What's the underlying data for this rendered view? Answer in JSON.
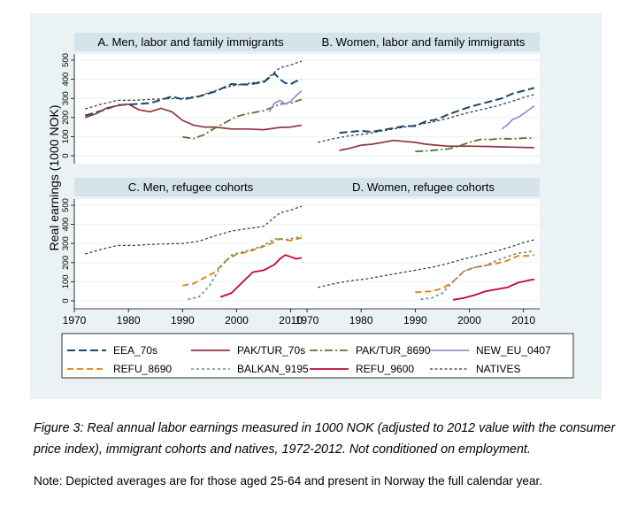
{
  "figure": {
    "y_axis_title": "Real earnings (1000 NOK)",
    "caption": "Figure 3: Real annual labor earnings measured in 1000 NOK (adjusted to 2012 value with the consumer price index), immigrant cohorts and natives, 1972-2012. Not conditioned on employment.",
    "note": "Note: Depicted averages are for those aged 25-64 and present in Norway the full calendar year."
  },
  "colors": {
    "EEA_70s": "#1a476f",
    "PAK/TUR_70s": "#90353b",
    "PAK/TUR_8690": "#55752f",
    "NEW_EU_0407": "#9c8fd6",
    "REFU_8690": "#e37e00",
    "BALKAN_9195": "#6e8e84",
    "REFU_9600": "#c10534",
    "NATIVES": "#343434",
    "panel_title_bg": "#d5e4eb",
    "figure_bg": "#eaf2f3"
  },
  "chart_data": [
    {
      "type": "line",
      "title": "A. Men, labor and family immigrants",
      "xlim": [
        1970,
        2013
      ],
      "ylim": [
        0,
        500
      ],
      "xticks": [
        "1970",
        "1980",
        "1990",
        "2000",
        "2010"
      ],
      "yticks": [
        "0",
        "100",
        "200",
        "300",
        "400",
        "500"
      ],
      "series": [
        {
          "name": "NATIVES",
          "x": [
            1972,
            1975,
            1978,
            1981,
            1984,
            1987,
            1990,
            1993,
            1996,
            1999,
            2002,
            2005,
            2008,
            2010,
            2012
          ],
          "y": [
            245,
            270,
            290,
            290,
            295,
            298,
            300,
            312,
            340,
            365,
            378,
            390,
            460,
            475,
            495
          ]
        },
        {
          "name": "EEA_70s",
          "x": [
            1972,
            1975,
            1978,
            1981,
            1984,
            1986,
            1988,
            1990,
            1993,
            1996,
            1999,
            2002,
            2005,
            2007,
            2008,
            2009,
            2010,
            2011,
            2012
          ],
          "y": [
            210,
            235,
            265,
            270,
            275,
            292,
            310,
            295,
            310,
            335,
            375,
            372,
            385,
            430,
            400,
            380,
            375,
            390,
            400
          ]
        },
        {
          "name": "PAK/TUR_70s",
          "x": [
            1972,
            1974,
            1976,
            1978,
            1980,
            1982,
            1984,
            1986,
            1988,
            1990,
            1992,
            1994,
            1996,
            1999,
            2002,
            2005,
            2008,
            2010,
            2012
          ],
          "y": [
            200,
            220,
            250,
            262,
            270,
            240,
            230,
            248,
            230,
            185,
            160,
            150,
            150,
            140,
            140,
            136,
            148,
            150,
            160
          ]
        },
        {
          "name": "PAK/TUR_8690",
          "x": [
            1990,
            1992,
            1994,
            1996,
            1998,
            2000,
            2002,
            2005,
            2008,
            2010,
            2012
          ],
          "y": [
            98,
            90,
            110,
            145,
            175,
            205,
            220,
            235,
            270,
            275,
            295
          ]
        },
        {
          "name": "NEW_EU_0407",
          "x": [
            2006,
            2007,
            2008,
            2009,
            2010,
            2011,
            2012
          ],
          "y": [
            230,
            275,
            290,
            270,
            285,
            315,
            340
          ]
        }
      ]
    },
    {
      "type": "line",
      "title": "B. Women, labor and family immigrants",
      "xlim": [
        1970,
        2013
      ],
      "ylim": [
        0,
        500
      ],
      "xticks": [
        "1970",
        "1980",
        "1990",
        "2000",
        "2010"
      ],
      "yticks": [
        "0",
        "100",
        "200",
        "300",
        "400",
        "500"
      ],
      "series": [
        {
          "name": "NATIVES",
          "x": [
            1972,
            1975,
            1978,
            1981,
            1984,
            1987,
            1990,
            1993,
            1996,
            1999,
            2002,
            2005,
            2008,
            2010,
            2012
          ],
          "y": [
            70,
            90,
            105,
            115,
            130,
            145,
            160,
            175,
            195,
            220,
            240,
            260,
            285,
            305,
            320
          ]
        },
        {
          "name": "EEA_70s",
          "x": [
            1976,
            1978,
            1980,
            1982,
            1984,
            1986,
            1988,
            1990,
            1992,
            1994,
            1996,
            1998,
            2000,
            2002,
            2004,
            2006,
            2008,
            2010,
            2012
          ],
          "y": [
            120,
            125,
            130,
            125,
            135,
            145,
            155,
            155,
            180,
            190,
            215,
            235,
            255,
            270,
            285,
            300,
            325,
            340,
            355
          ]
        },
        {
          "name": "PAK/TUR_70s",
          "x": [
            1976,
            1978,
            1980,
            1982,
            1984,
            1986,
            1988,
            1990,
            1992,
            1994,
            1996,
            2000,
            2004,
            2008,
            2012
          ],
          "y": [
            28,
            40,
            55,
            60,
            70,
            80,
            75,
            70,
            60,
            55,
            50,
            50,
            48,
            45,
            42
          ]
        },
        {
          "name": "PAK/TUR_8690",
          "x": [
            1990,
            1992,
            1994,
            1996,
            1998,
            2000,
            2002,
            2004,
            2006,
            2008,
            2010,
            2012
          ],
          "y": [
            22,
            25,
            30,
            35,
            50,
            70,
            85,
            85,
            90,
            88,
            92,
            92
          ]
        },
        {
          "name": "NEW_EU_0407",
          "x": [
            2006,
            2007,
            2008,
            2009,
            2010,
            2011,
            2012
          ],
          "y": [
            140,
            160,
            190,
            200,
            220,
            240,
            260
          ]
        }
      ]
    },
    {
      "type": "line",
      "title": "C. Men, refugee cohorts",
      "xlim": [
        1970,
        2013
      ],
      "ylim": [
        0,
        500
      ],
      "xticks": [
        "1970",
        "1980",
        "1990",
        "2000",
        "2010"
      ],
      "yticks": [
        "0",
        "100",
        "200",
        "300",
        "400",
        "500"
      ],
      "series": [
        {
          "name": "NATIVES",
          "x": [
            1972,
            1975,
            1978,
            1981,
            1984,
            1987,
            1990,
            1993,
            1996,
            1999,
            2002,
            2005,
            2008,
            2010,
            2012
          ],
          "y": [
            245,
            270,
            290,
            290,
            295,
            298,
            300,
            312,
            340,
            365,
            378,
            390,
            460,
            475,
            495
          ]
        },
        {
          "name": "REFU_8690",
          "x": [
            1990,
            1992,
            1994,
            1996,
            1998,
            2000,
            2002,
            2004,
            2006,
            2008,
            2010,
            2012
          ],
          "y": [
            80,
            90,
            120,
            150,
            210,
            245,
            255,
            275,
            295,
            325,
            315,
            330
          ]
        },
        {
          "name": "BALKAN_9195",
          "x": [
            1991,
            1993,
            1995,
            1997,
            1999,
            2001,
            2003,
            2005,
            2007,
            2009,
            2011,
            2012
          ],
          "y": [
            8,
            20,
            80,
            175,
            240,
            255,
            270,
            290,
            325,
            320,
            330,
            340
          ]
        },
        {
          "name": "REFU_9600",
          "x": [
            1997,
            1999,
            2001,
            2003,
            2005,
            2007,
            2008,
            2009,
            2010,
            2011,
            2012
          ],
          "y": [
            20,
            40,
            95,
            150,
            160,
            190,
            220,
            240,
            230,
            220,
            225
          ]
        }
      ]
    },
    {
      "type": "line",
      "title": "D. Women, refugee cohorts",
      "xlim": [
        1970,
        2013
      ],
      "ylim": [
        0,
        500
      ],
      "xticks": [
        "1970",
        "1980",
        "1990",
        "2000",
        "2010"
      ],
      "yticks": [
        "0",
        "100",
        "200",
        "300",
        "400",
        "500"
      ],
      "series": [
        {
          "name": "NATIVES",
          "x": [
            1972,
            1975,
            1978,
            1981,
            1984,
            1987,
            1990,
            1993,
            1996,
            1999,
            2002,
            2005,
            2008,
            2010,
            2012
          ],
          "y": [
            70,
            90,
            105,
            115,
            130,
            145,
            160,
            175,
            195,
            220,
            240,
            260,
            285,
            305,
            320
          ]
        },
        {
          "name": "REFU_8690",
          "x": [
            1990,
            1993,
            1995,
            1997,
            1999,
            2001,
            2003,
            2005,
            2007,
            2009,
            2011,
            2012
          ],
          "y": [
            45,
            50,
            65,
            100,
            155,
            175,
            185,
            195,
            210,
            235,
            235,
            240
          ]
        },
        {
          "name": "BALKAN_9195",
          "x": [
            1991,
            1993,
            1995,
            1997,
            1999,
            2001,
            2003,
            2005,
            2007,
            2009,
            2011,
            2012
          ],
          "y": [
            8,
            15,
            40,
            100,
            155,
            175,
            185,
            210,
            230,
            250,
            255,
            265
          ]
        },
        {
          "name": "REFU_9600",
          "x": [
            1997,
            1999,
            2001,
            2003,
            2005,
            2007,
            2009,
            2011,
            2012
          ],
          "y": [
            5,
            15,
            30,
            50,
            60,
            70,
            95,
            108,
            112
          ]
        }
      ]
    }
  ],
  "legend": {
    "items": [
      {
        "name": "EEA_70s",
        "dash": "long"
      },
      {
        "name": "PAK/TUR_70s",
        "dash": "solid"
      },
      {
        "name": "PAK/TUR_8690",
        "dash": "longdot"
      },
      {
        "name": "NEW_EU_0407",
        "dash": "solid"
      },
      {
        "name": "REFU_8690",
        "dash": "medium"
      },
      {
        "name": "BALKAN_9195",
        "dash": "short"
      },
      {
        "name": "REFU_9600",
        "dash": "solid"
      },
      {
        "name": "NATIVES",
        "dash": "short"
      }
    ]
  }
}
